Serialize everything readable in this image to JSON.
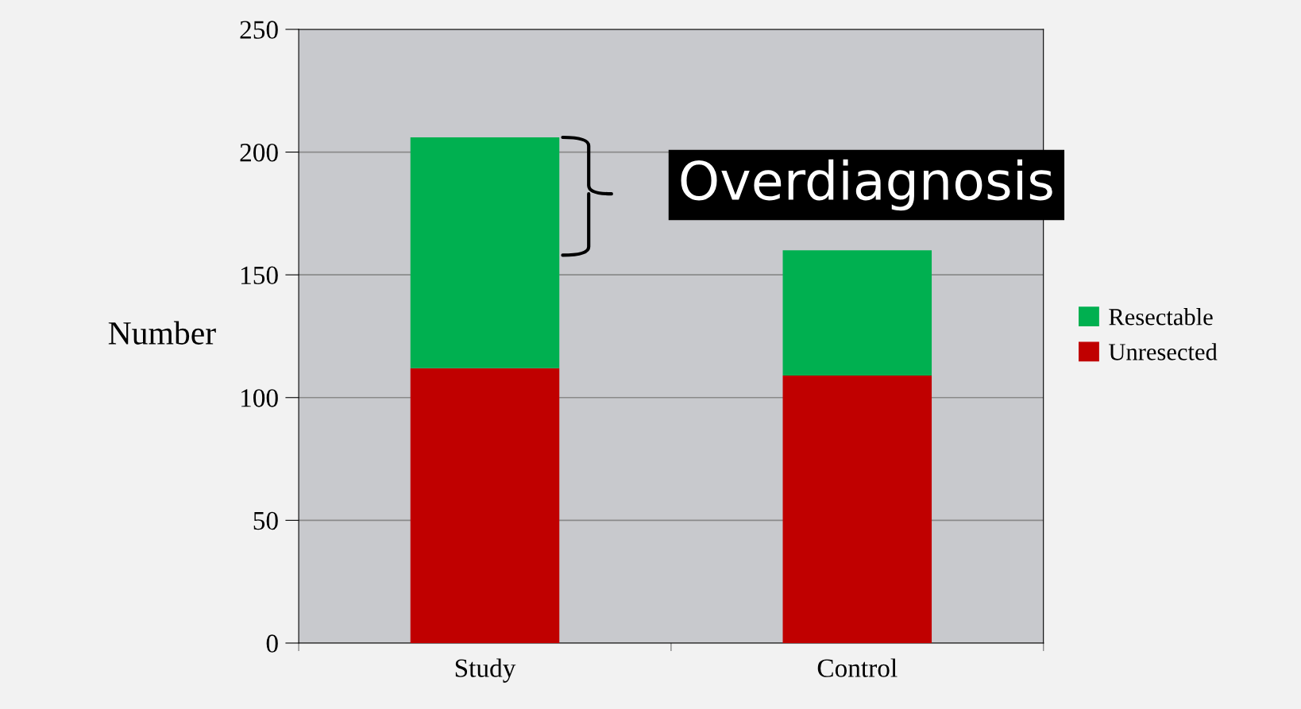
{
  "chart_data": {
    "type": "bar",
    "stacked": true,
    "ylabel": "Number",
    "categories": [
      "Study",
      "Control"
    ],
    "series": [
      {
        "name": "Unresected",
        "color": "#c00000",
        "values": [
          112,
          109
        ]
      },
      {
        "name": "Resectable",
        "color": "#00b050",
        "values": [
          94,
          51
        ]
      }
    ],
    "ylim": [
      0,
      250
    ],
    "yticks": [
      0,
      50,
      100,
      150,
      200,
      250
    ],
    "grid": "y",
    "legend": "right",
    "annotations": [
      "Overdiagnosis"
    ]
  }
}
